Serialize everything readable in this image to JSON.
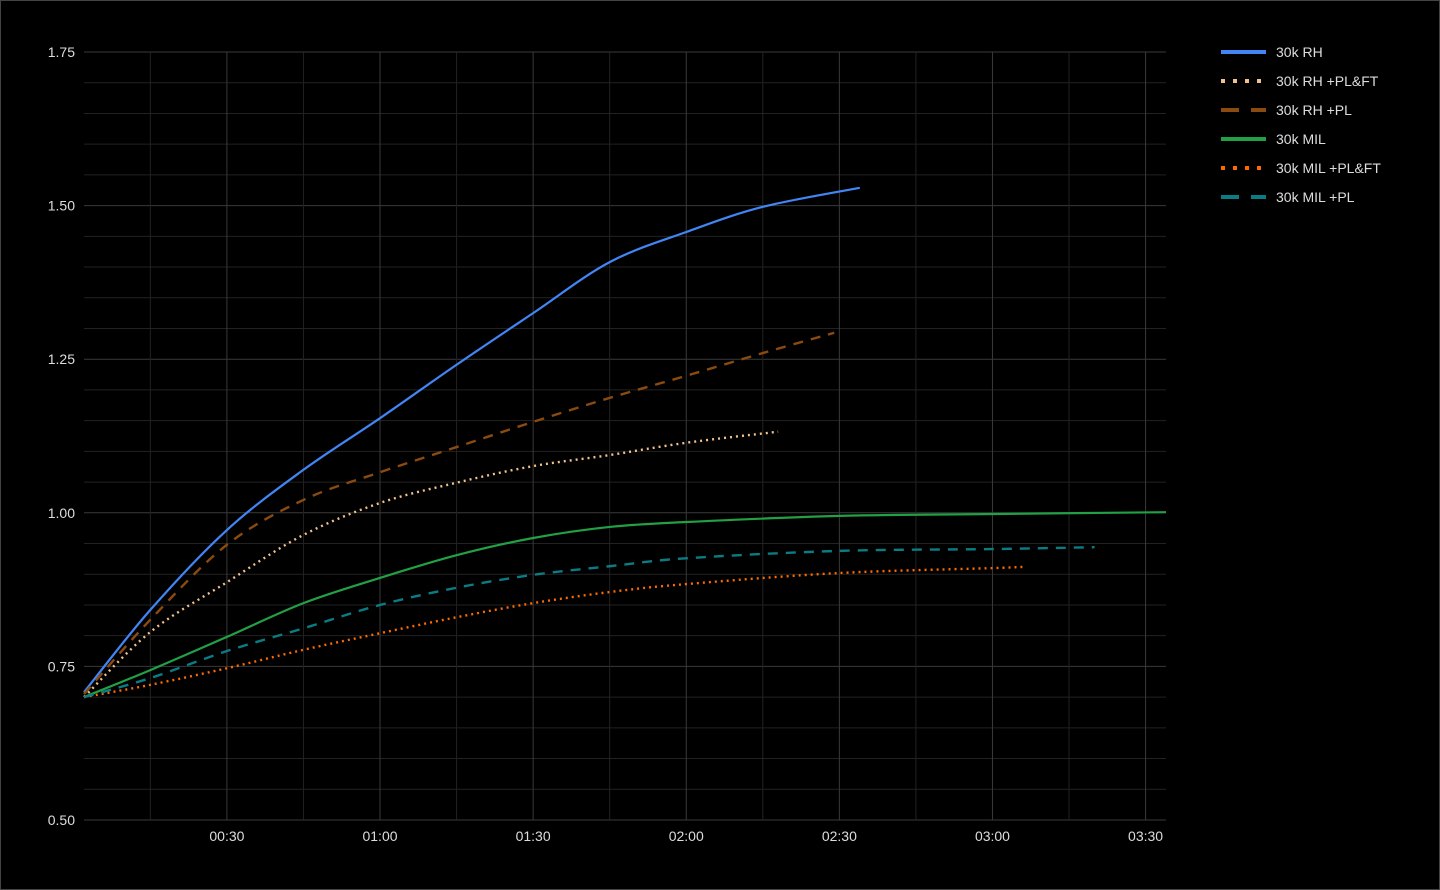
{
  "chart_data": {
    "type": "line",
    "title": "",
    "xlabel": "",
    "ylabel": "",
    "x_unit": "seconds (mm:ss)",
    "xlim": [
      2,
      214
    ],
    "ylim": [
      0.5,
      1.75
    ],
    "grid": true,
    "legend_position": "right",
    "x_ticks": [
      30,
      60,
      90,
      120,
      150,
      180,
      210
    ],
    "x_tick_labels": [
      "00:30",
      "01:00",
      "01:30",
      "02:00",
      "02:30",
      "03:00",
      "03:30"
    ],
    "y_ticks": [
      0.5,
      0.75,
      1.0,
      1.25,
      1.5,
      1.75
    ],
    "y_tick_labels": [
      "0.50",
      "0.75",
      "1.00",
      "1.25",
      "1.50",
      "1.75"
    ],
    "series": [
      {
        "name": "30k RH",
        "color": "#4285f4",
        "style": "solid",
        "x": [
          2,
          15,
          30,
          45,
          60,
          75,
          90,
          105,
          120,
          135,
          154
        ],
        "y": [
          0.708,
          0.842,
          0.972,
          1.07,
          1.154,
          1.241,
          1.325,
          1.408,
          1.457,
          1.498,
          1.529
        ]
      },
      {
        "name": "30k RH +PL&FT",
        "color": "#f2c28e",
        "style": "dotted",
        "x": [
          2,
          15,
          30,
          45,
          60,
          75,
          90,
          105,
          120,
          138
        ],
        "y": [
          0.7,
          0.806,
          0.887,
          0.964,
          1.016,
          1.049,
          1.076,
          1.094,
          1.114,
          1.132
        ]
      },
      {
        "name": "30k RH +PL",
        "color": "#8b4a10",
        "style": "dashed",
        "x": [
          2,
          15,
          30,
          45,
          60,
          75,
          90,
          105,
          120,
          135,
          149
        ],
        "y": [
          0.705,
          0.826,
          0.948,
          1.021,
          1.066,
          1.107,
          1.148,
          1.187,
          1.223,
          1.26,
          1.293
        ]
      },
      {
        "name": "30k MIL",
        "color": "#22a046",
        "style": "solid",
        "x": [
          2,
          15,
          30,
          45,
          60,
          75,
          90,
          105,
          120,
          150,
          180,
          214
        ],
        "y": [
          0.7,
          0.744,
          0.798,
          0.853,
          0.894,
          0.931,
          0.959,
          0.977,
          0.985,
          0.995,
          0.998,
          1.001
        ]
      },
      {
        "name": "30k MIL +PL&FT",
        "color": "#ff6a00",
        "style": "dotted",
        "x": [
          2,
          15,
          30,
          45,
          60,
          75,
          90,
          105,
          120,
          150,
          180,
          186
        ],
        "y": [
          0.7,
          0.72,
          0.747,
          0.777,
          0.804,
          0.83,
          0.853,
          0.871,
          0.884,
          0.902,
          0.91,
          0.912
        ]
      },
      {
        "name": "30k MIL +PL",
        "color": "#0a7c84",
        "style": "dashed",
        "x": [
          2,
          15,
          30,
          45,
          60,
          75,
          90,
          105,
          120,
          150,
          180,
          200
        ],
        "y": [
          0.7,
          0.731,
          0.775,
          0.812,
          0.85,
          0.878,
          0.899,
          0.913,
          0.926,
          0.938,
          0.941,
          0.944
        ]
      }
    ]
  }
}
